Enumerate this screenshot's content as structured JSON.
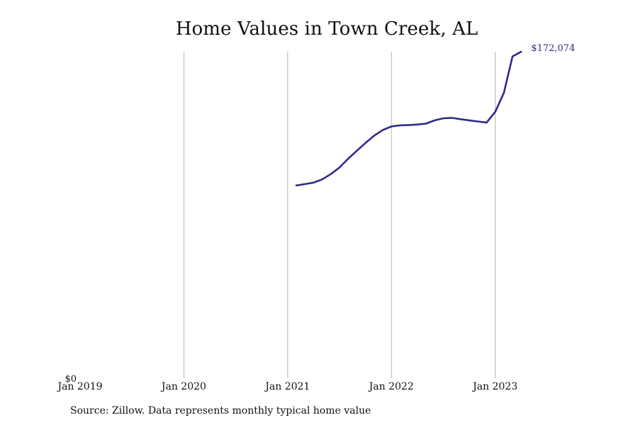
{
  "title": "Home Values in Town Creek, AL",
  "source": "Source: Zillow. Data represents monthly typical home value",
  "colors": {
    "line": "#2e2a8c",
    "grid": "#b3b3b3",
    "text": "#111111"
  },
  "chart_data": {
    "type": "line",
    "title": "Home Values in Town Creek, AL",
    "xlabel": "",
    "ylabel": "",
    "x_tick_labels": [
      "Jan 2019",
      "Jan 2020",
      "Jan 2021",
      "Jan 2022",
      "Jan 2023"
    ],
    "x_range": [
      "2019-01",
      "2024-06"
    ],
    "y_tick_labels": [
      "$0"
    ],
    "ylim": [
      0,
      172074
    ],
    "grid": "vertical",
    "end_label": "$172,074",
    "series": [
      {
        "points": [
          {
            "x": "2021-02",
            "y": 101600
          },
          {
            "x": "2021-03",
            "y": 102300
          },
          {
            "x": "2021-04",
            "y": 103100
          },
          {
            "x": "2021-05",
            "y": 104800
          },
          {
            "x": "2021-06",
            "y": 107600
          },
          {
            "x": "2021-07",
            "y": 111100
          },
          {
            "x": "2021-08",
            "y": 115700
          },
          {
            "x": "2021-09",
            "y": 119900
          },
          {
            "x": "2021-10",
            "y": 124000
          },
          {
            "x": "2021-11",
            "y": 127800
          },
          {
            "x": "2021-12",
            "y": 130800
          },
          {
            "x": "2022-01",
            "y": 132700
          },
          {
            "x": "2022-02",
            "y": 133300
          },
          {
            "x": "2022-03",
            "y": 133400
          },
          {
            "x": "2022-04",
            "y": 133700
          },
          {
            "x": "2022-05",
            "y": 134200
          },
          {
            "x": "2022-06",
            "y": 135900
          },
          {
            "x": "2022-07",
            "y": 137000
          },
          {
            "x": "2022-08",
            "y": 137200
          },
          {
            "x": "2022-09",
            "y": 136500
          },
          {
            "x": "2022-10",
            "y": 135900
          },
          {
            "x": "2022-11",
            "y": 135300
          },
          {
            "x": "2022-12",
            "y": 134700
          },
          {
            "x": "2023-01",
            "y": 140400
          },
          {
            "x": "2023-02",
            "y": 150400
          },
          {
            "x": "2023-03",
            "y": 169600
          },
          {
            "x": "2023-04",
            "y": 172074
          }
        ]
      }
    ]
  }
}
